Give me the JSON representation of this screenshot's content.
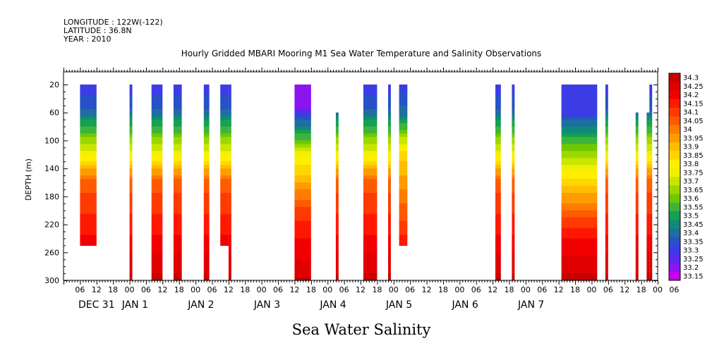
{
  "header": {
    "longitude": "LONGITUDE : 122W(-122)",
    "latitude": "LATITUDE : 36.8N",
    "year": "YEAR : 2010"
  },
  "chart_data": {
    "type": "heatmap",
    "title": "Hourly Gridded MBARI Mooring M1 Sea Water Temperature and Salinity Observations",
    "variable_label": "Sea Water Salinity",
    "ylabel": "DEPTH (m)",
    "ylim": [
      0,
      300
    ],
    "y_reversed": true,
    "y_ticks": [
      20,
      60,
      100,
      140,
      180,
      220,
      260,
      300
    ],
    "x_hour_ticks": [
      "06",
      "12",
      "18",
      "00",
      "06",
      "12",
      "18",
      "00",
      "06",
      "12",
      "18",
      "00",
      "06",
      "12",
      "18",
      "00",
      "06",
      "12",
      "18",
      "00",
      "06",
      "12",
      "18",
      "00",
      "06",
      "12",
      "18",
      "00",
      "06",
      "12",
      "18",
      "00",
      "06",
      "12",
      "18",
      "00",
      "06"
    ],
    "x_day_labels": [
      "DEC 31",
      "JAN  1",
      "JAN  2",
      "JAN  3",
      "JAN  4",
      "JAN  5",
      "JAN  6",
      "JAN  7"
    ],
    "colorbar": {
      "levels": [
        "34.3",
        "34.25",
        "34.2",
        "34.15",
        "34.1",
        "34.05",
        "34",
        "33.95",
        "33.9",
        "33.85",
        "33.8",
        "33.75",
        "33.7",
        "33.65",
        "33.6",
        "33.55",
        "33.5",
        "33.45",
        "33.4",
        "33.35",
        "33.3",
        "33.25",
        "33.2",
        "33.15"
      ],
      "colors": [
        "#c80000",
        "#e00000",
        "#f20000",
        "#ff1800",
        "#ff3a00",
        "#ff5a00",
        "#ff7c00",
        "#ff9c00",
        "#ffbc00",
        "#ffd600",
        "#ffee00",
        "#f0f000",
        "#c8e600",
        "#9cd800",
        "#6ec800",
        "#3cb43c",
        "#16a050",
        "#108a78",
        "#1e6ea0",
        "#2850c8",
        "#3c3ce6",
        "#5a28f0",
        "#8c14f0",
        "#c800f0"
      ]
    },
    "columns": [
      {
        "t_start": -18,
        "t_end": -12,
        "z_top": 20,
        "z_bottom": 250,
        "pattern": "deep"
      },
      {
        "t_start": 0,
        "t_end": 1,
        "z_top": 20,
        "z_bottom": 300,
        "pattern": "deep"
      },
      {
        "t_start": 8,
        "t_end": 12,
        "z_top": 20,
        "z_bottom": 300,
        "pattern": "deep"
      },
      {
        "t_start": 16,
        "t_end": 19,
        "z_top": 20,
        "z_bottom": 300,
        "pattern": "deep"
      },
      {
        "t_start": 27,
        "t_end": 29,
        "z_top": 20,
        "z_bottom": 300,
        "pattern": "deep"
      },
      {
        "t_start": 33,
        "t_end": 36,
        "z_top": 20,
        "z_bottom": 250,
        "pattern": "deep"
      },
      {
        "t_start": 36,
        "t_end": 37,
        "z_top": 20,
        "z_bottom": 300,
        "pattern": "deep"
      },
      {
        "t_start": 60,
        "t_end": 66,
        "z_top": 20,
        "z_bottom": 300,
        "pattern": "fresh"
      },
      {
        "t_start": 75,
        "t_end": 76,
        "z_top": 60,
        "z_bottom": 300,
        "pattern": "deep"
      },
      {
        "t_start": 85,
        "t_end": 90,
        "z_top": 20,
        "z_bottom": 300,
        "pattern": "deep"
      },
      {
        "t_start": 94,
        "t_end": 95,
        "z_top": 20,
        "z_bottom": 300,
        "pattern": "deep"
      },
      {
        "t_start": 98,
        "t_end": 101,
        "z_top": 20,
        "z_bottom": 250,
        "pattern": "shallow"
      },
      {
        "t_start": 133,
        "t_end": 135,
        "z_top": 20,
        "z_bottom": 300,
        "pattern": "deep"
      },
      {
        "t_start": 139,
        "t_end": 140,
        "z_top": 20,
        "z_bottom": 300,
        "pattern": "deep"
      },
      {
        "t_start": 157,
        "t_end": 170,
        "z_top": 20,
        "z_bottom": 300,
        "pattern": "wide"
      },
      {
        "t_start": 173,
        "t_end": 174,
        "z_top": 20,
        "z_bottom": 300,
        "pattern": "deep"
      },
      {
        "t_start": 184,
        "t_end": 185,
        "z_top": 60,
        "z_bottom": 300,
        "pattern": "deep"
      },
      {
        "t_start": 188,
        "t_end": 189,
        "z_top": 60,
        "z_bottom": 300,
        "pattern": "deep"
      },
      {
        "t_start": 189,
        "t_end": 190,
        "z_top": 20,
        "z_bottom": 300,
        "pattern": "deep"
      }
    ]
  }
}
